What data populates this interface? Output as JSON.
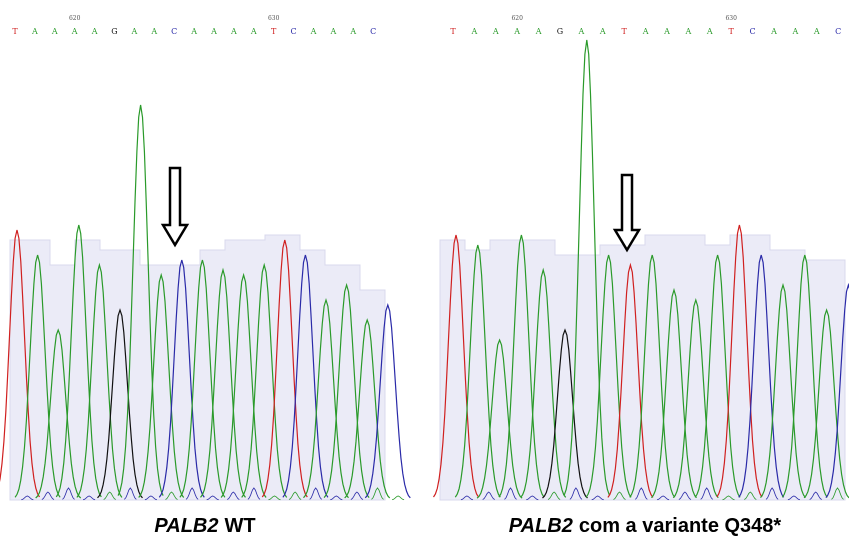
{
  "panels": [
    {
      "bases": [
        "T",
        "A",
        "A",
        "A",
        "A",
        "G",
        "A",
        "A",
        "C",
        "A",
        "A",
        "A",
        "A",
        "T",
        "C",
        "A",
        "A",
        "A",
        "C"
      ],
      "positions": [
        "620",
        "630"
      ],
      "caption": {
        "gene": "PALB2",
        "text": "WT"
      }
    },
    {
      "bases": [
        "T",
        "A",
        "A",
        "A",
        "A",
        "G",
        "A",
        "A",
        "T",
        "A",
        "A",
        "A",
        "A",
        "T",
        "C",
        "A",
        "A",
        "A",
        "C"
      ],
      "positions": [
        "620",
        "630"
      ],
      "caption": {
        "gene": "PALB2",
        "text": "com a variante Q348*"
      }
    }
  ]
}
